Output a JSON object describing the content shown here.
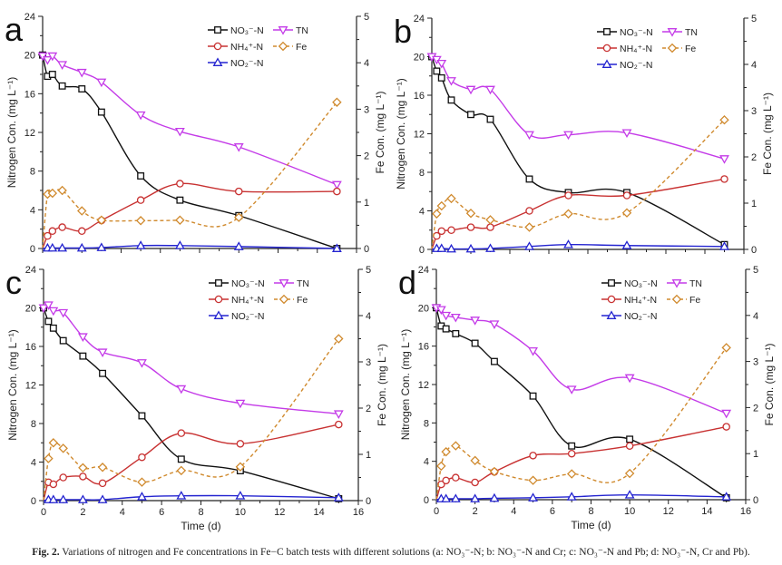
{
  "caption": {
    "label": "Fig. 2.",
    "text": "Variations of nitrogen and Fe concentrations in Fe−C batch tests with different solutions (a: NO₃⁻-N; b: NO₃⁻-N and Cr; c: NO₃⁻-N and Pb; d: NO₃⁻-N, Cr and Pb)."
  },
  "colors": {
    "NO3": "#111111",
    "TN": "#c43be8",
    "NH4": "#c83232",
    "NO2": "#2424d0",
    "Fe": "#d08a2e"
  },
  "chart_data": [
    {
      "type": "line",
      "panel": "a",
      "xlabel": "",
      "ylabel": "Nitrogen Con. (mg L⁻¹)",
      "y2label": "Fe Con. (mg L⁻¹)",
      "xlim": [
        0,
        16
      ],
      "ylim": [
        0,
        24
      ],
      "y2lim": [
        0,
        5
      ],
      "xticks": [
        0,
        2,
        4,
        6,
        8,
        10,
        12,
        14,
        16
      ],
      "yticks": [
        0,
        4,
        8,
        12,
        16,
        20,
        24
      ],
      "y2ticks": [
        0,
        1,
        2,
        3,
        4,
        5
      ],
      "show_xtick_labels": false,
      "legend": "top-right",
      "x": [
        0,
        0.25,
        0.5,
        1,
        2,
        3,
        5,
        7,
        10,
        15
      ],
      "series": [
        {
          "name": "NO₃⁻-N",
          "key": "NO3",
          "axis": "left",
          "marker": "square",
          "values": [
            20,
            17.8,
            18.0,
            16.8,
            16.5,
            14.1,
            7.5,
            5.0,
            3.4,
            0.0
          ]
        },
        {
          "name": "TN",
          "key": "TN",
          "axis": "left",
          "marker": "triangle-down",
          "values": [
            19.9,
            19.5,
            19.9,
            19.0,
            18.2,
            17.2,
            13.8,
            12.1,
            10.5,
            6.6
          ]
        },
        {
          "name": "NH₄⁺-N",
          "key": "NH4",
          "axis": "left",
          "marker": "circle",
          "values": [
            0,
            1.3,
            1.8,
            2.2,
            1.8,
            2.9,
            5.0,
            6.7,
            5.9,
            5.9
          ]
        },
        {
          "name": "Fe",
          "key": "Fe",
          "axis": "right",
          "marker": "diamond",
          "dashed": true,
          "values": [
            0,
            1.17,
            1.19,
            1.25,
            0.81,
            0.61,
            0.6,
            0.61,
            0.67,
            3.15
          ]
        },
        {
          "name": "NO₂⁻-N",
          "key": "NO2",
          "axis": "left",
          "marker": "triangle-up",
          "values": [
            0,
            0.05,
            0.05,
            0.05,
            0.05,
            0.1,
            0.3,
            0.3,
            0.2,
            0.0
          ]
        }
      ]
    },
    {
      "type": "line",
      "panel": "b",
      "xlabel": "",
      "ylabel": "Nitrogen Con. (mg L⁻¹)",
      "y2label": "Fe Con. (mg L⁻¹)",
      "xlim": [
        0,
        16
      ],
      "ylim": [
        0,
        24
      ],
      "y2lim": [
        0,
        5
      ],
      "xticks": [
        0,
        2,
        4,
        6,
        8,
        10,
        12,
        14,
        16
      ],
      "yticks": [
        0,
        4,
        8,
        12,
        16,
        20,
        24
      ],
      "y2ticks": [
        0,
        1,
        2,
        3,
        4,
        5
      ],
      "show_xtick_labels": false,
      "legend": "top-right",
      "x": [
        0,
        0.25,
        0.5,
        1,
        2,
        3,
        5,
        7,
        10,
        15
      ],
      "series": [
        {
          "name": "NO₃⁻-N",
          "key": "NO3",
          "axis": "left",
          "marker": "square",
          "values": [
            20,
            18.5,
            17.8,
            15.5,
            14.0,
            13.5,
            7.3,
            5.9,
            5.9,
            0.5
          ]
        },
        {
          "name": "TN",
          "key": "TN",
          "axis": "left",
          "marker": "triangle-down",
          "values": [
            20,
            19.7,
            19.3,
            17.5,
            16.6,
            16.6,
            11.9,
            11.9,
            12.1,
            9.4
          ]
        },
        {
          "name": "NH₄⁺-N",
          "key": "NH4",
          "axis": "left",
          "marker": "circle",
          "values": [
            0,
            1.4,
            1.9,
            2.0,
            2.3,
            2.3,
            4.0,
            5.6,
            5.6,
            7.3
          ]
        },
        {
          "name": "Fe",
          "key": "Fe",
          "axis": "right",
          "marker": "diamond",
          "dashed": true,
          "values": [
            0,
            0.77,
            0.94,
            1.1,
            0.78,
            0.64,
            0.48,
            0.77,
            0.79,
            2.8
          ]
        },
        {
          "name": "NO₂⁻-N",
          "key": "NO2",
          "axis": "left",
          "marker": "triangle-up",
          "values": [
            0,
            0.1,
            0.1,
            0.05,
            0.05,
            0.1,
            0.3,
            0.5,
            0.4,
            0.3
          ]
        }
      ]
    },
    {
      "type": "line",
      "panel": "c",
      "xlabel": "Time (d)",
      "ylabel": "Nitrogen Con. (mg L⁻¹)",
      "y2label": "Fe Con. (mg L⁻¹)",
      "xlim": [
        0,
        16
      ],
      "ylim": [
        0,
        24
      ],
      "y2lim": [
        0,
        5
      ],
      "xticks": [
        0,
        2,
        4,
        6,
        8,
        10,
        12,
        14,
        16
      ],
      "yticks": [
        0,
        4,
        8,
        12,
        16,
        20,
        24
      ],
      "y2ticks": [
        0,
        1,
        2,
        3,
        4,
        5
      ],
      "show_xtick_labels": true,
      "legend": "top-right",
      "x": [
        0,
        0.25,
        0.5,
        1,
        2,
        3,
        5,
        7,
        10,
        15
      ],
      "series": [
        {
          "name": "NO₃⁻-N",
          "key": "NO3",
          "axis": "left",
          "marker": "square",
          "values": [
            20,
            18.6,
            17.9,
            16.6,
            15.0,
            13.2,
            8.8,
            4.3,
            3.1,
            0.2
          ]
        },
        {
          "name": "TN",
          "key": "TN",
          "axis": "left",
          "marker": "triangle-down",
          "values": [
            20,
            20.3,
            19.7,
            19.5,
            17.0,
            15.4,
            14.3,
            11.6,
            10.1,
            9.0
          ]
        },
        {
          "name": "NH₄⁺-N",
          "key": "NH4",
          "axis": "left",
          "marker": "circle",
          "values": [
            0,
            1.9,
            1.7,
            2.4,
            2.5,
            1.8,
            4.5,
            7.0,
            5.9,
            7.9
          ]
        },
        {
          "name": "Fe",
          "key": "Fe",
          "axis": "right",
          "marker": "diamond",
          "dashed": true,
          "values": [
            0,
            0.91,
            1.25,
            1.13,
            0.71,
            0.72,
            0.4,
            0.65,
            0.73,
            3.5
          ]
        },
        {
          "name": "NO₂⁻-N",
          "key": "NO2",
          "axis": "left",
          "marker": "triangle-up",
          "values": [
            0,
            0.1,
            0.1,
            0.1,
            0.1,
            0.1,
            0.4,
            0.5,
            0.5,
            0.3
          ]
        }
      ]
    },
    {
      "type": "line",
      "panel": "d",
      "xlabel": "Time (d)",
      "ylabel": "Nitrogen Con. (mg L⁻¹)",
      "y2label": "Fe Con. (mg L⁻¹)",
      "xlim": [
        0,
        16
      ],
      "ylim": [
        0,
        24
      ],
      "y2lim": [
        0,
        5
      ],
      "xticks": [
        0,
        2,
        4,
        6,
        8,
        10,
        12,
        14,
        16
      ],
      "yticks": [
        0,
        4,
        8,
        12,
        16,
        20,
        24
      ],
      "y2ticks": [
        0,
        1,
        2,
        3,
        4,
        5
      ],
      "show_xtick_labels": true,
      "legend": "top-right",
      "x": [
        0,
        0.25,
        0.5,
        1,
        2,
        3,
        5,
        7,
        10,
        15
      ],
      "series": [
        {
          "name": "NO₃⁻-N",
          "key": "NO3",
          "axis": "left",
          "marker": "square",
          "values": [
            20,
            18.1,
            17.8,
            17.3,
            16.3,
            14.4,
            10.8,
            5.6,
            6.3,
            0.2
          ]
        },
        {
          "name": "TN",
          "key": "TN",
          "axis": "left",
          "marker": "triangle-down",
          "values": [
            20,
            19.8,
            19.2,
            19.0,
            18.7,
            18.3,
            15.5,
            11.5,
            12.7,
            9.0
          ]
        },
        {
          "name": "NH₄⁺-N",
          "key": "NH4",
          "axis": "left",
          "marker": "circle",
          "values": [
            0,
            1.6,
            2.0,
            2.3,
            1.8,
            2.9,
            4.6,
            4.8,
            5.6,
            7.6
          ]
        },
        {
          "name": "Fe",
          "key": "Fe",
          "axis": "right",
          "marker": "diamond",
          "dashed": true,
          "values": [
            0,
            0.73,
            1.04,
            1.17,
            0.85,
            0.61,
            0.42,
            0.56,
            0.57,
            3.3
          ]
        },
        {
          "name": "NO₂⁻-N",
          "key": "NO2",
          "axis": "left",
          "marker": "triangle-up",
          "values": [
            0,
            0.1,
            0.1,
            0.1,
            0.1,
            0.15,
            0.2,
            0.3,
            0.5,
            0.3
          ]
        }
      ]
    }
  ]
}
